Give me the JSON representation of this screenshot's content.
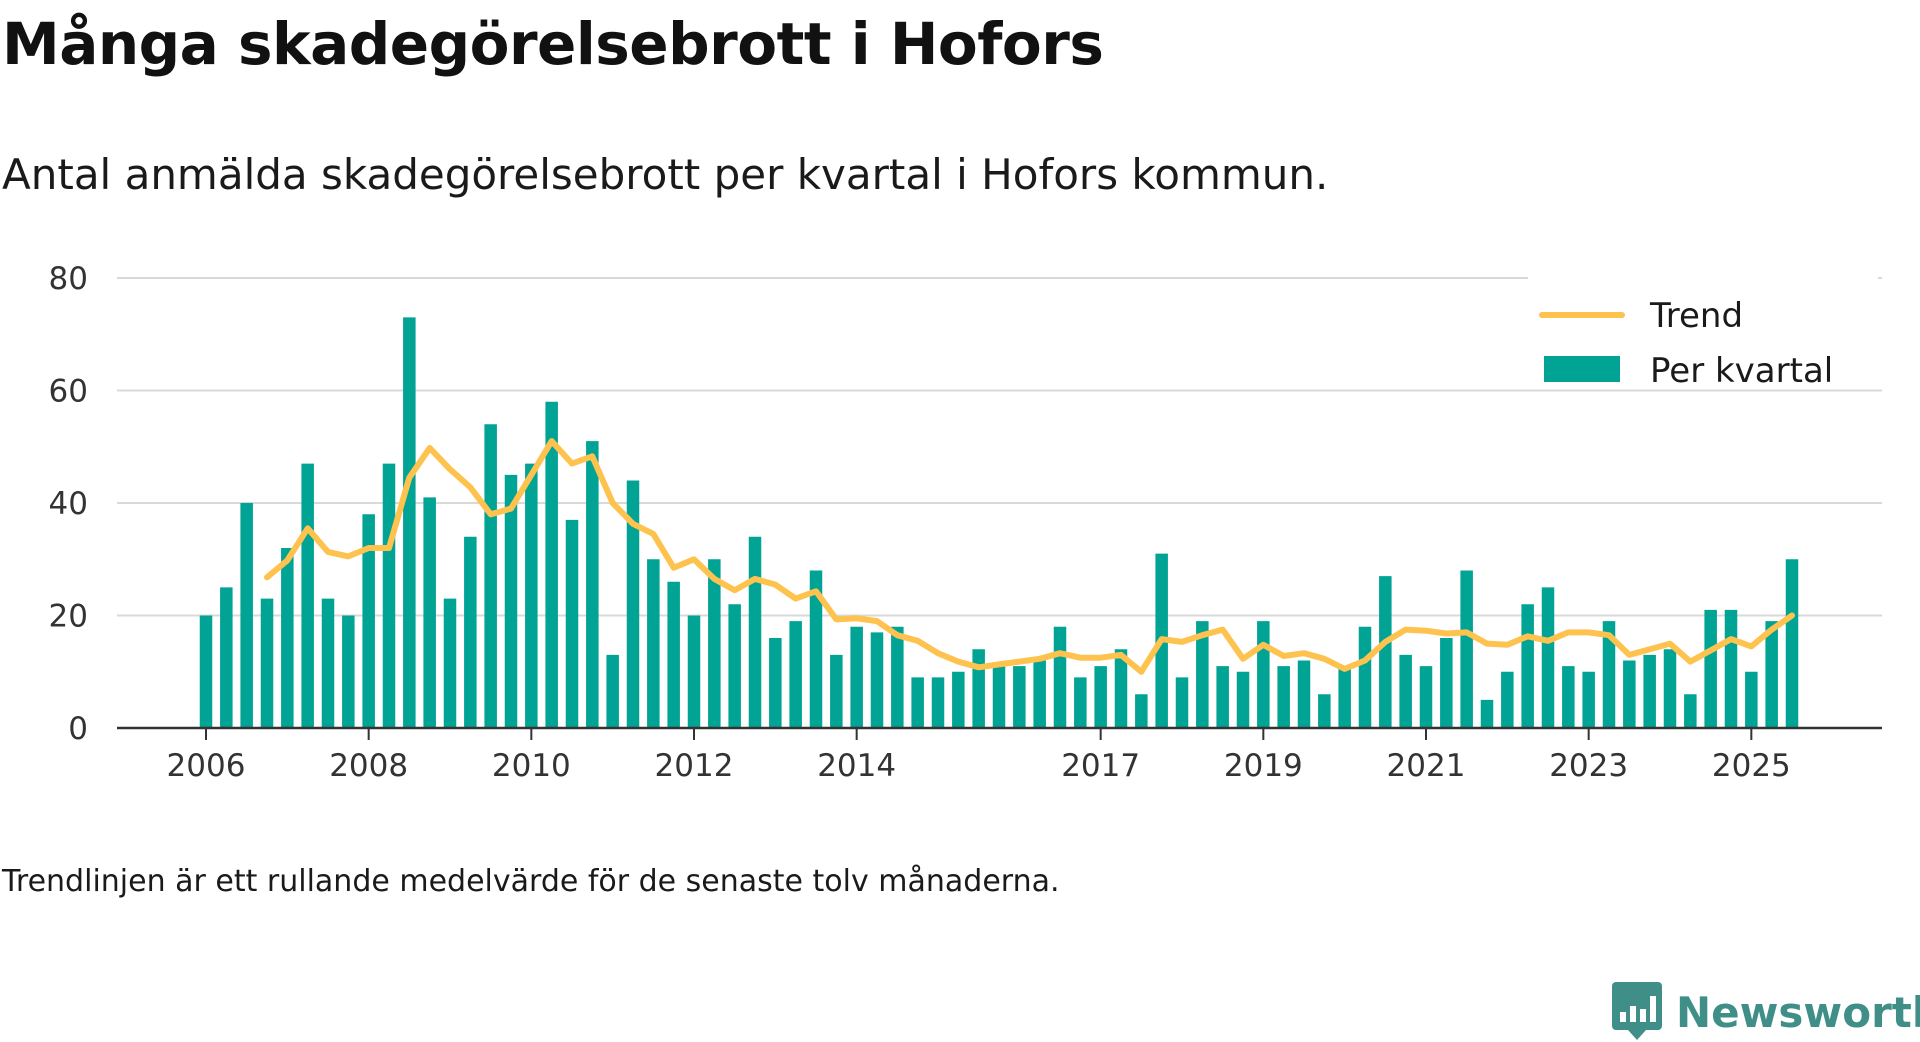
{
  "title": "Många skadegörelsebrott i Hofors",
  "subtitle": "Antal anmälda skadegörelsebrott per kvartal i Hofors kommun.",
  "note": "Trendlinjen är ett rullande medelvärde för de senaste tolv månaderna.",
  "logo": {
    "text": "Newsworthy",
    "icon": "newsworthy-bar-icon",
    "color": "#3f8f88"
  },
  "colors": {
    "bar": "#00a394",
    "trend": "#fec24f",
    "grid": "#d9d9d9",
    "axis": "#333333"
  },
  "chart_data": {
    "type": "bar",
    "title": "Många skadegörelsebrott i Hofors",
    "xlabel": "",
    "ylabel": "",
    "ylim": [
      0,
      80
    ],
    "yticks": [
      0,
      20,
      40,
      60,
      80
    ],
    "grid": true,
    "legend_position": "top-right",
    "x_ticks": [
      {
        "label": "2006",
        "index": 0
      },
      {
        "label": "2008",
        "index": 8
      },
      {
        "label": "2010",
        "index": 16
      },
      {
        "label": "2012",
        "index": 24
      },
      {
        "label": "2014",
        "index": 32
      },
      {
        "label": "2017",
        "index": 44
      },
      {
        "label": "2019",
        "index": 52
      },
      {
        "label": "2021",
        "index": 60
      },
      {
        "label": "2023",
        "index": 68
      },
      {
        "label": "2025",
        "index": 76
      }
    ],
    "series": [
      {
        "name": "Per kvartal",
        "type": "bar",
        "values": [
          20,
          25,
          40,
          23,
          32,
          47,
          23,
          20,
          38,
          47,
          73,
          41,
          23,
          34,
          54,
          45,
          47,
          58,
          37,
          51,
          13,
          44,
          30,
          26,
          20,
          30,
          22,
          34,
          16,
          19,
          28,
          13,
          18,
          17,
          18,
          9,
          9,
          10,
          14,
          11,
          11,
          12,
          18,
          9,
          11,
          14,
          6,
          31,
          9,
          19,
          11,
          10,
          19,
          11,
          12,
          6,
          11,
          18,
          27,
          13,
          11,
          16,
          28,
          5,
          10,
          22,
          25,
          11,
          10,
          19,
          12,
          13,
          14,
          6,
          21,
          21,
          10,
          19,
          30
        ]
      },
      {
        "name": "Trend",
        "type": "line",
        "start_index": 3,
        "values": [
          26.8,
          29.8,
          35.5,
          31.3,
          30.5,
          32.0,
          32.0,
          44.5,
          49.8,
          46.0,
          42.8,
          38.0,
          39.0,
          45.0,
          51.0,
          47.0,
          48.3,
          40.0,
          36.3,
          34.5,
          28.5,
          30.0,
          26.5,
          24.5,
          26.5,
          25.5,
          23.0,
          24.3,
          19.3,
          19.5,
          19.0,
          16.5,
          15.5,
          13.3,
          11.8,
          10.8,
          11.3,
          11.8,
          12.3,
          13.3,
          12.5,
          12.5,
          13.0,
          10.0,
          15.8,
          15.3,
          16.5,
          17.5,
          12.3,
          14.8,
          12.8,
          13.3,
          12.3,
          10.5,
          12.0,
          15.3,
          17.5,
          17.3,
          16.8,
          17.0,
          15.0,
          14.8,
          16.3,
          15.5,
          17.0,
          17.0,
          16.5,
          13.0,
          14.0,
          15.0,
          11.8,
          13.8,
          15.8,
          14.5,
          17.5,
          20.0
        ]
      }
    ]
  }
}
